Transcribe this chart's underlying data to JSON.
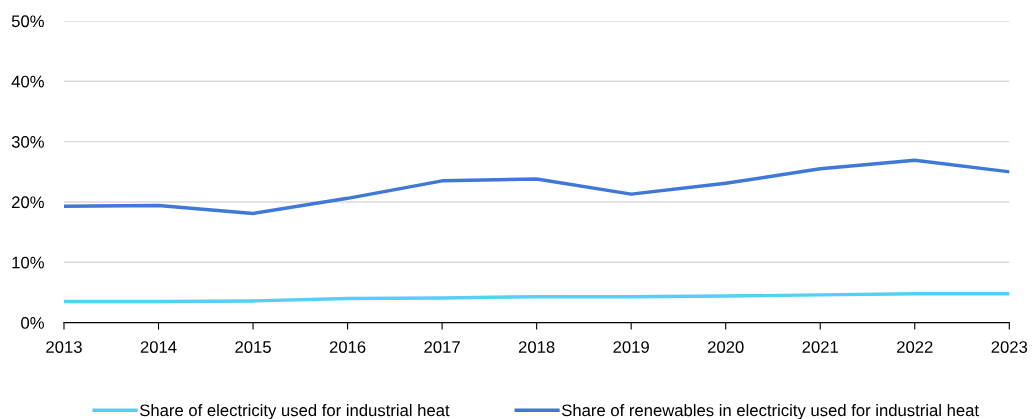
{
  "chart_data": {
    "type": "line",
    "x": [
      2013,
      2014,
      2015,
      2016,
      2017,
      2018,
      2019,
      2020,
      2021,
      2022,
      2023
    ],
    "series": [
      {
        "name": "Share of electricity used for industrial heat",
        "color": "#55cff5",
        "values": [
          3.5,
          3.5,
          3.6,
          4.0,
          4.1,
          4.3,
          4.3,
          4.4,
          4.6,
          4.8,
          4.8
        ]
      },
      {
        "name": "Share of renewables in electricity used for industrial heat",
        "color": "#3f78d6",
        "values": [
          19.3,
          19.4,
          18.1,
          20.6,
          23.5,
          23.8,
          21.3,
          23.1,
          25.5,
          26.9,
          25.0
        ]
      }
    ],
    "xlim": [
      2013,
      2023
    ],
    "xticks": [
      2013,
      2014,
      2015,
      2016,
      2017,
      2018,
      2019,
      2020,
      2021,
      2022,
      2023
    ],
    "ylim": [
      0,
      50
    ],
    "yticks": [
      {
        "value": 0,
        "label": "0%"
      },
      {
        "value": 10,
        "label": "10%"
      },
      {
        "value": 20,
        "label": "20%"
      },
      {
        "value": 30,
        "label": "30%"
      },
      {
        "value": 40,
        "label": "40%"
      },
      {
        "value": 50,
        "label": "50%"
      }
    ],
    "grid": "y",
    "legend": "bottom",
    "marker": "none",
    "line_style": "solid"
  }
}
